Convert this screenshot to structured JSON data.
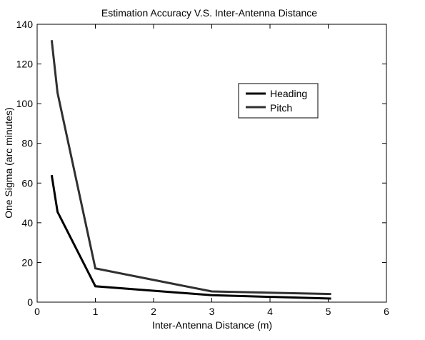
{
  "chart_data": {
    "type": "line",
    "title": "Estimation Accuracy V.S. Inter-Antenna Distance",
    "xlabel": "Inter-Antenna Distance (m)",
    "ylabel": "One Sigma (arc minutes)",
    "xlim": [
      0,
      6
    ],
    "ylim": [
      0,
      140
    ],
    "x_ticks": [
      0,
      1,
      2,
      3,
      4,
      5,
      6
    ],
    "y_ticks": [
      0,
      20,
      40,
      60,
      80,
      100,
      120,
      140
    ],
    "grid": false,
    "legend_position": "top-right",
    "series": [
      {
        "name": "Heading",
        "color": "#000000",
        "x": [
          0.25,
          0.35,
          1,
          3,
          5.05
        ],
        "values": [
          64,
          45.5,
          8,
          3.5,
          1.8
        ]
      },
      {
        "name": "Pitch",
        "color": "#303030",
        "x": [
          0.25,
          0.35,
          1,
          3,
          5.05
        ],
        "values": [
          132,
          105.5,
          17,
          5.4,
          4.1
        ]
      }
    ]
  }
}
